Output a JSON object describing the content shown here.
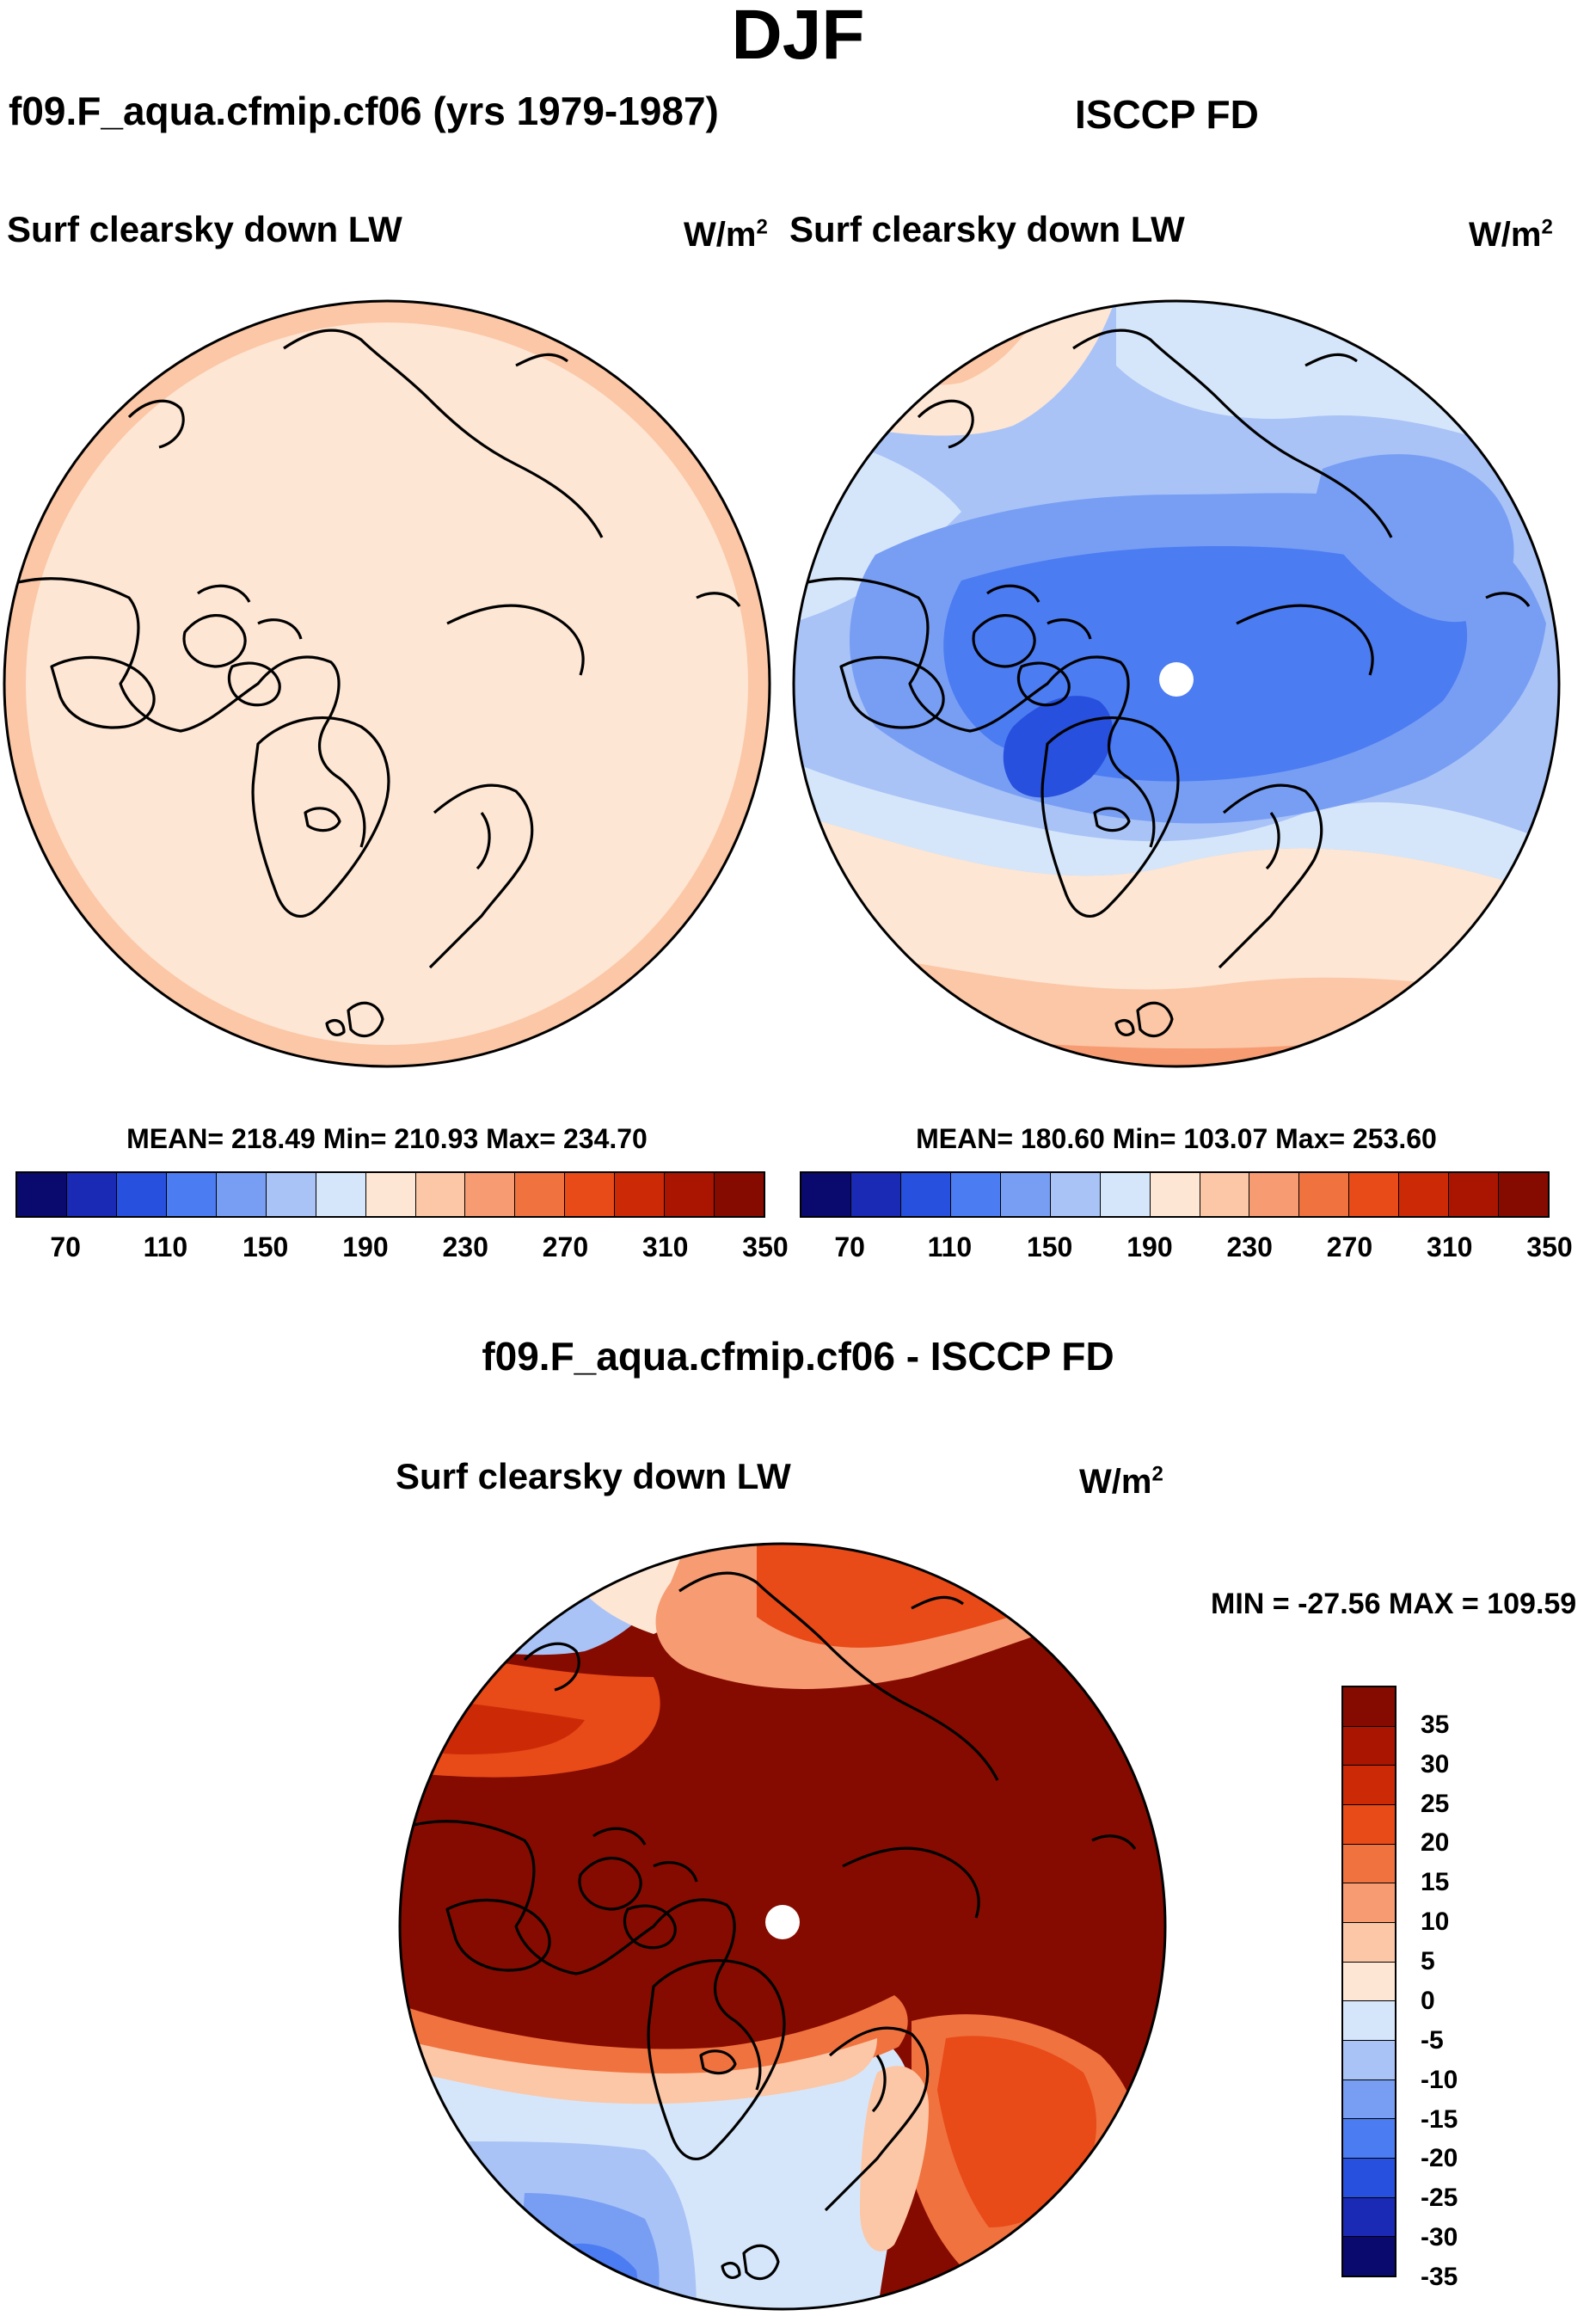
{
  "title": "DJF",
  "panels": {
    "model": {
      "run_label": "f09.F_aqua.cfmip.cf06 (yrs 1979-1987)",
      "variable": "Surf clearsky down LW",
      "unit_base": "W/m",
      "unit_exp": "2",
      "stats": "MEAN= 218.49  Min= 210.93  Max= 234.70"
    },
    "obs": {
      "run_label": "ISCCP FD",
      "variable": "Surf clearsky down LW",
      "unit_base": "W/m",
      "unit_exp": "2",
      "stats": "MEAN= 180.60  Min= 103.07  Max= 253.60"
    },
    "diff": {
      "run_label": "f09.F_aqua.cfmip.cf06 - ISCCP FD",
      "variable": "Surf clearsky down LW",
      "unit_base": "W/m",
      "unit_exp": "2",
      "stats": "MIN = -27.56 MAX = 109.59"
    }
  },
  "colorbar_abs": {
    "colors": [
      "#0a0a6e",
      "#1a2ab5",
      "#2850de",
      "#4c7cf2",
      "#789ef4",
      "#a9c3f7",
      "#d6e6fa",
      "#fde6d4",
      "#fbc7a6",
      "#f69b72",
      "#f0723f",
      "#e84a18",
      "#cc2a07",
      "#aa1502",
      "#850b00"
    ],
    "tick_labels": [
      "70",
      "110",
      "150",
      "190",
      "230",
      "270",
      "310",
      "350"
    ]
  },
  "colorbar_diff": {
    "colors": [
      "#850b00",
      "#aa1502",
      "#cc2a07",
      "#e84a18",
      "#f0723f",
      "#f69b72",
      "#fbc7a6",
      "#fde6d4",
      "#d6e6fa",
      "#a9c3f7",
      "#789ef4",
      "#4c7cf2",
      "#2850de",
      "#1a2ab5",
      "#0a0a6e"
    ],
    "tick_labels": [
      "35",
      "30",
      "25",
      "20",
      "15",
      "10",
      "5",
      "0",
      "-5",
      "-10",
      "-15",
      "-20",
      "-25",
      "-30",
      "-35"
    ]
  },
  "map_fills": {
    "model_base": "#fde6d4",
    "model_rim": "#fbc7a6",
    "obs_base": "#a9c3f7",
    "diff_base": "#850b00",
    "pole_hole": "#ffffff",
    "coast": "#000000"
  }
}
